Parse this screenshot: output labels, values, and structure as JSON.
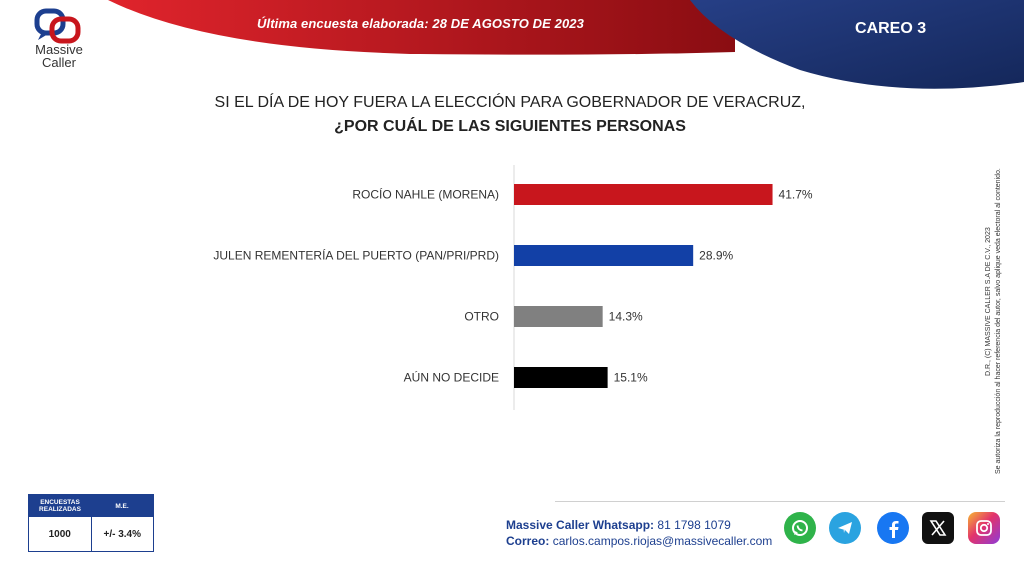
{
  "header": {
    "logo_name": "Massive",
    "logo_sub": "Caller",
    "survey_date_label": "Última encuesta elaborada: 28 DE AGOSTO DE 2023",
    "careo_label": "CAREO 3"
  },
  "question": {
    "line1": "SI EL DÍA DE HOY FUERA LA ELECCIÓN PARA GOBERNADOR DE VERACRUZ,",
    "line2": "¿POR CUÁL DE LAS SIGUIENTES PERSONAS"
  },
  "chart_data": {
    "type": "bar",
    "orientation": "horizontal",
    "categories": [
      "ROCÍO NAHLE (MORENA)",
      "JULEN REMENTERÍA DEL PUERTO (PAN/PRI/PRD)",
      "OTRO",
      "AÚN NO DECIDE"
    ],
    "values": [
      41.7,
      28.9,
      14.3,
      15.1
    ],
    "value_labels": [
      "41.7%",
      "28.9%",
      "14.3%",
      "15.1%"
    ],
    "colors": [
      "#c8161d",
      "#1240a6",
      "#808080",
      "#000000"
    ],
    "xlim": [
      0,
      50
    ],
    "grid": false
  },
  "side_text": {
    "line1": "D.R., (C) MASSIVE CALLER S.A DE C.V., 2023",
    "line2": "Se autoriza la reproducción al hacer referencia del autor, salvo aplique veda electoral al contenido."
  },
  "survey_box": {
    "col1_header": "ENCUESTAS REALIZADAS",
    "col2_header": "M.E.",
    "col1_value": "1000",
    "col2_value": "+/- 3.4%"
  },
  "footer": {
    "whatsapp_label": "Massive Caller Whatsapp:",
    "whatsapp_value": "81 1798 1079",
    "email_label": "Correo:",
    "email_value": "carlos.campos.riojas@massivecaller.com"
  },
  "colors": {
    "brand_red": "#c8161d",
    "brand_blue": "#1d3f8f",
    "banner_navy": "#1a2f66"
  },
  "social_icons": [
    "whatsapp-icon",
    "telegram-icon",
    "facebook-icon",
    "x-icon",
    "instagram-icon"
  ]
}
